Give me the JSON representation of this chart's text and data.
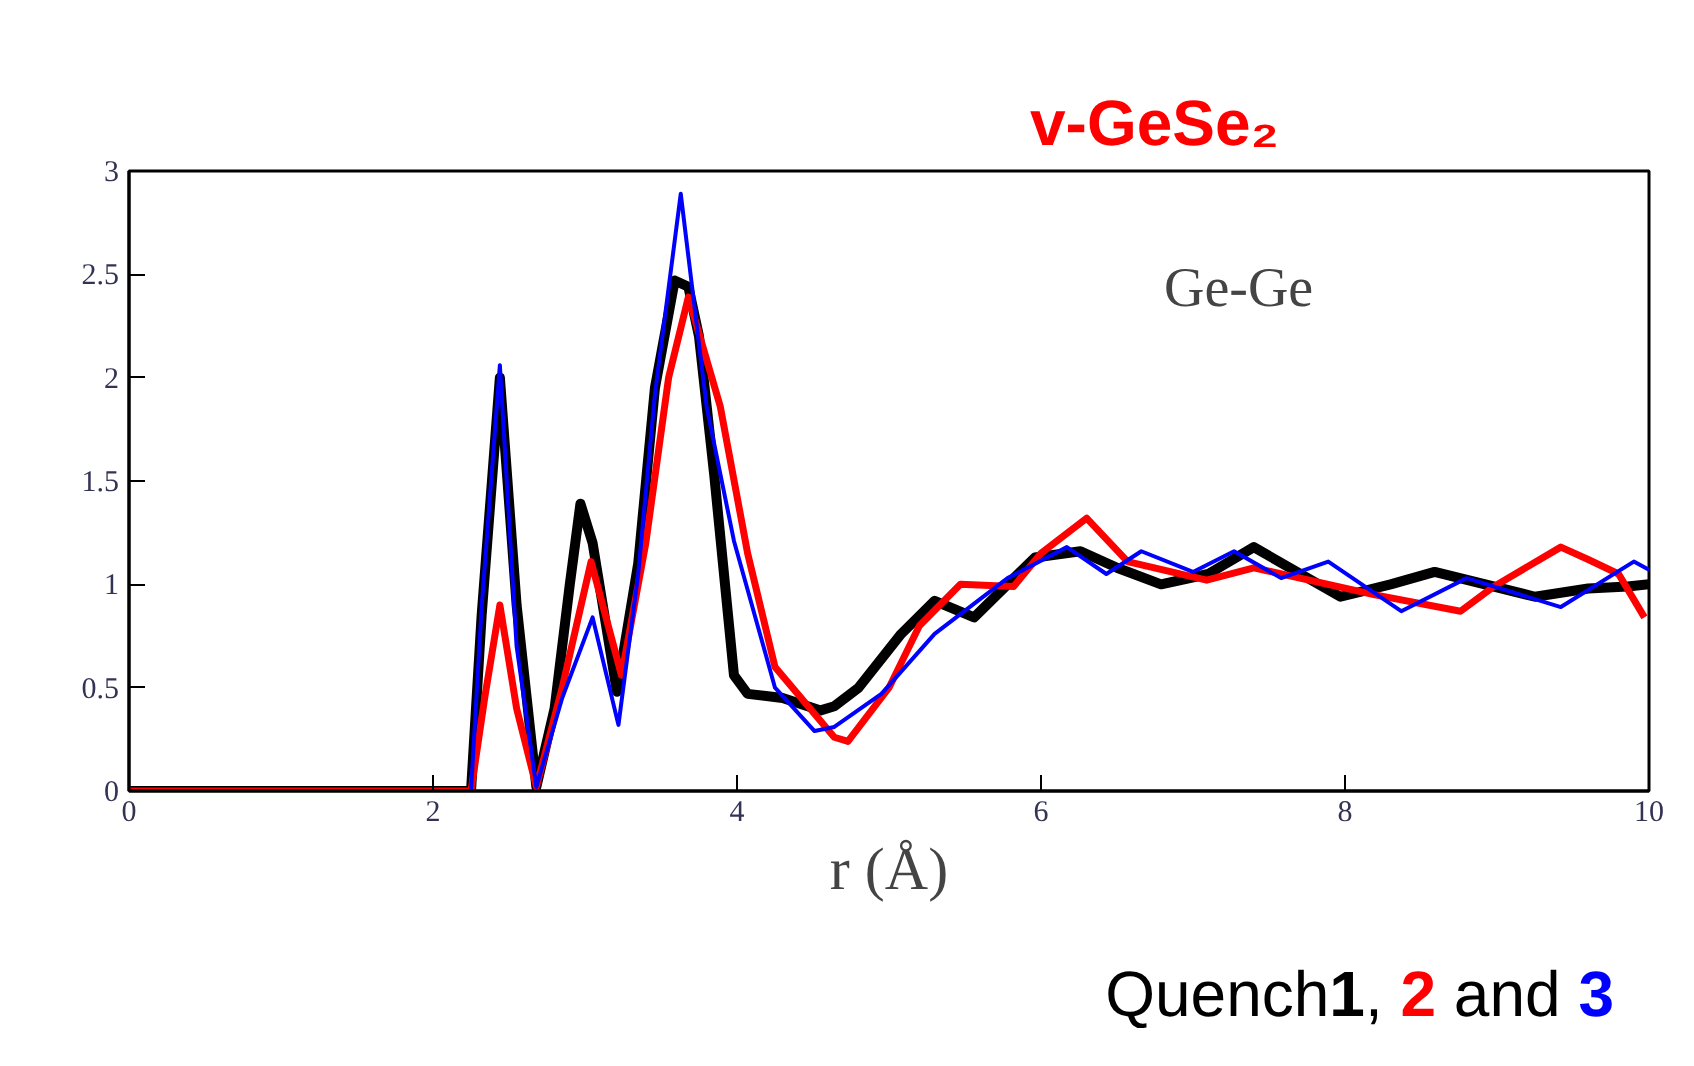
{
  "chart_data": {
    "type": "line",
    "title": "v-GeSe₂",
    "xlabel": "r (Å)",
    "legend_title": "Quench",
    "legend": "bottom right",
    "annotations": [
      "Ge-Ge",
      ",",
      "and"
    ],
    "xlim": [
      0,
      10
    ],
    "ylim": [
      0,
      3
    ],
    "xticks": [
      0,
      2,
      4,
      6,
      8,
      10
    ],
    "yticks": [
      0,
      0.5,
      1,
      1.5,
      2,
      2.5,
      3
    ],
    "grid": false,
    "marker": "none",
    "line_style": "solid",
    "series": [
      {
        "name": "1",
        "color": "#000000",
        "x": [
          0,
          2.25,
          2.32,
          2.44,
          2.55,
          2.68,
          2.8,
          2.9,
          2.97,
          3.05,
          3.21,
          3.35,
          3.46,
          3.59,
          3.68,
          3.75,
          3.85,
          3.98,
          4.07,
          4.3,
          4.55,
          4.64,
          4.8,
          5.08,
          5.3,
          5.56,
          5.96,
          6.26,
          6.5,
          6.79,
          7.1,
          7.4,
          7.97,
          8.3,
          8.59,
          9.25,
          9.6,
          9.86,
          10
        ],
        "values": [
          0,
          0,
          0.85,
          2.0,
          0.9,
          0.02,
          0.4,
          1.0,
          1.39,
          1.2,
          0.48,
          1.1,
          1.95,
          2.47,
          2.44,
          2.2,
          1.53,
          0.56,
          0.47,
          0.45,
          0.39,
          0.41,
          0.5,
          0.76,
          0.92,
          0.84,
          1.13,
          1.16,
          1.08,
          1.0,
          1.05,
          1.18,
          0.94,
          1.0,
          1.06,
          0.94,
          0.98,
          0.99,
          1.0
        ]
      },
      {
        "name": "2",
        "color": "#ff0000",
        "x": [
          0,
          2.25,
          2.34,
          2.44,
          2.55,
          2.68,
          2.85,
          3.04,
          3.24,
          3.4,
          3.55,
          3.68,
          3.89,
          4.07,
          4.25,
          4.64,
          4.73,
          5.0,
          5.2,
          5.47,
          5.82,
          6.0,
          6.3,
          6.57,
          7.09,
          7.4,
          8.19,
          8.76,
          8.98,
          9.42,
          9.6,
          9.8,
          9.97
        ],
        "values": [
          0,
          0,
          0.45,
          0.9,
          0.4,
          0.02,
          0.5,
          1.11,
          0.56,
          1.2,
          2.0,
          2.39,
          1.86,
          1.15,
          0.6,
          0.26,
          0.24,
          0.5,
          0.8,
          1.0,
          0.99,
          1.15,
          1.32,
          1.11,
          1.02,
          1.08,
          0.95,
          0.87,
          0.99,
          1.18,
          1.12,
          1.05,
          0.84
        ]
      },
      {
        "name": "3",
        "color": "#0000ff",
        "x": [
          0,
          2.25,
          2.32,
          2.44,
          2.55,
          2.68,
          2.85,
          3.05,
          3.22,
          3.35,
          3.46,
          3.63,
          3.8,
          3.98,
          4.25,
          4.51,
          4.64,
          4.95,
          5.3,
          5.78,
          6.17,
          6.43,
          6.66,
          7.0,
          7.27,
          7.58,
          7.89,
          8.37,
          8.8,
          9.42,
          9.9,
          10
        ],
        "values": [
          0,
          0,
          0.89,
          2.06,
          0.7,
          0.02,
          0.45,
          0.84,
          0.32,
          1.05,
          1.92,
          2.89,
          1.86,
          1.21,
          0.5,
          0.29,
          0.31,
          0.47,
          0.76,
          1.03,
          1.18,
          1.05,
          1.16,
          1.06,
          1.16,
          1.03,
          1.11,
          0.87,
          1.03,
          0.89,
          1.11,
          1.07
        ]
      }
    ]
  }
}
